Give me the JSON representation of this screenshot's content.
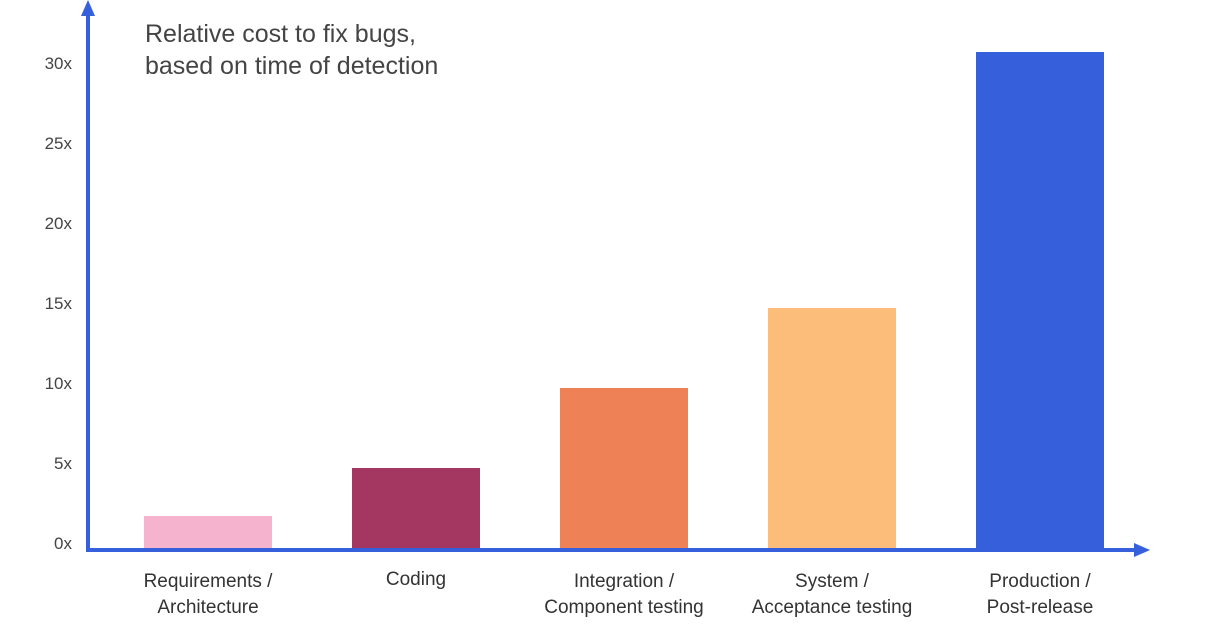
{
  "chart_data": {
    "type": "bar",
    "title": "Relative cost to fix bugs, based on time of detection",
    "title_lines": [
      "Relative cost to fix bugs,",
      "based on time of detection"
    ],
    "xlabel": "",
    "ylabel": "",
    "categories": [
      "Requirements / Architecture",
      "Coding",
      "Integration / Component testing",
      "System / Acceptance testing",
      "Production / Post-release"
    ],
    "category_lines": [
      [
        "Requirements /",
        "Architecture"
      ],
      [
        "Coding",
        ""
      ],
      [
        "Integration /",
        "Component testing"
      ],
      [
        "System /",
        "Acceptance testing"
      ],
      [
        "Production /",
        "Post-release"
      ]
    ],
    "values": [
      2,
      5,
      10,
      15,
      31
    ],
    "colors": [
      "#F5B3CD",
      "#A33762",
      "#EE8156",
      "#FBBD79",
      "#3660DB"
    ],
    "yticks": [
      "0x",
      "5x",
      "10x",
      "15x",
      "20x",
      "25x",
      "30x"
    ],
    "ytick_values": [
      0,
      5,
      10,
      15,
      20,
      25,
      30
    ],
    "ylim": [
      0,
      32
    ],
    "grid": false,
    "legend": null,
    "axis_color": "#3660DB"
  }
}
